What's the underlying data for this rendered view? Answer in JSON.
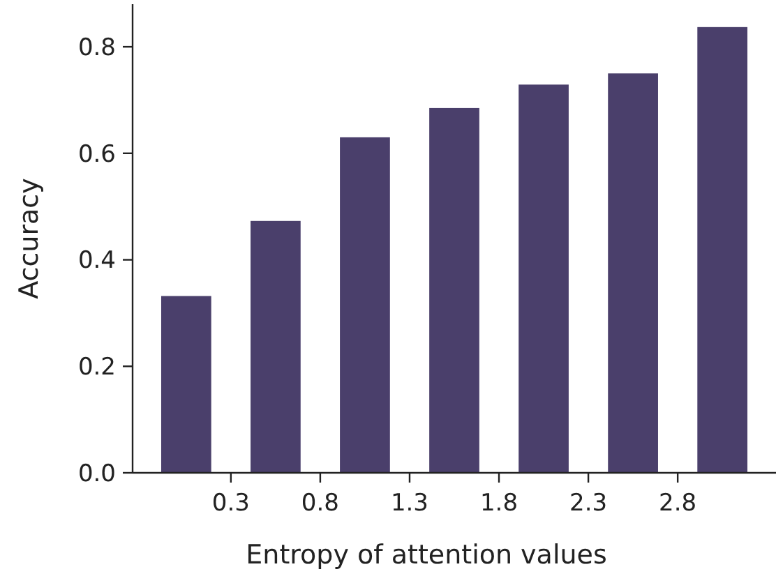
{
  "chart_data": {
    "type": "histogram",
    "xlabel": "Entropy of attention values",
    "ylabel": "Accuracy",
    "bins": [
      -0.2,
      0.3,
      0.8,
      1.3,
      1.8,
      2.3,
      2.8,
      3.3
    ],
    "values": [
      0.332,
      0.473,
      0.63,
      0.685,
      0.729,
      0.75,
      0.837
    ],
    "color": "#4a3f6b",
    "xlim": [
      -0.25,
      3.35
    ],
    "xticks": [
      0.3,
      0.8,
      1.3,
      1.8,
      2.3,
      2.8
    ],
    "ylim": [
      0,
      0.88
    ],
    "yticks": [
      {
        "value": 0,
        "label": "0.0"
      },
      0.2,
      0.4,
      0.6,
      0.8
    ],
    "grid": false
  }
}
